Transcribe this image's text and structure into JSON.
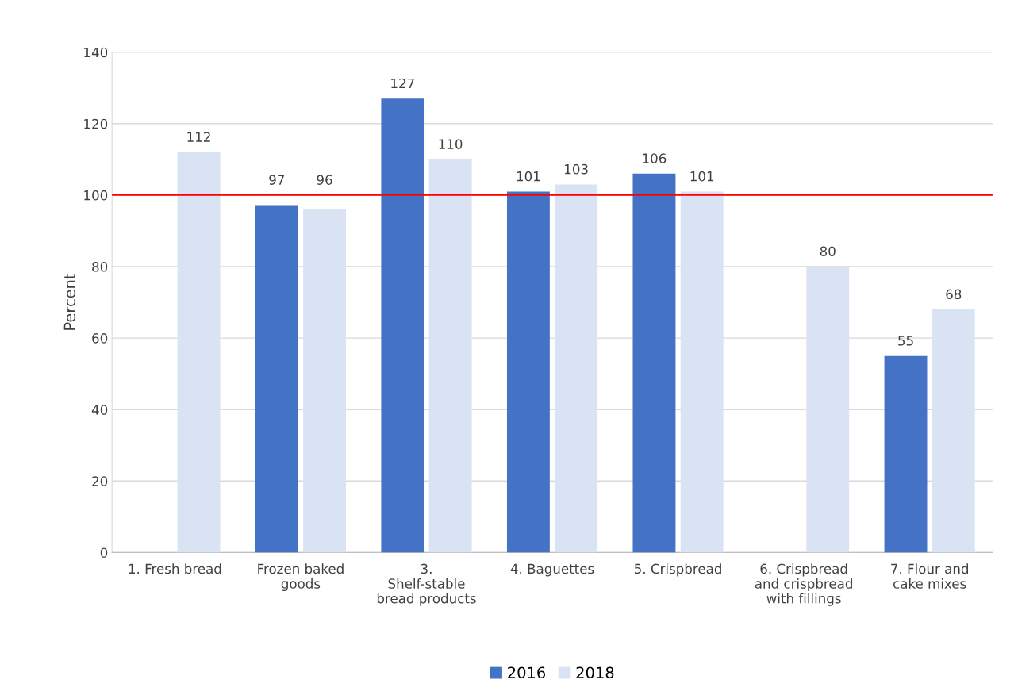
{
  "chart_data": {
    "type": "bar",
    "ylabel": "Percent",
    "categories": [
      "1. Fresh bread",
      "Frozen baked goods",
      "3. Shelf-stable bread products",
      "4. Baguettes",
      "5. Crispbread",
      "6. Crispbread and crispbread with fillings",
      "7. Flour and cake mixes"
    ],
    "series": [
      {
        "name": "2016",
        "color": "#4472c4",
        "values": [
          null,
          97,
          127,
          101,
          106,
          null,
          55
        ]
      },
      {
        "name": "2018",
        "color": "#dae3f3",
        "values": [
          112,
          96,
          110,
          103,
          101,
          80,
          68
        ]
      }
    ],
    "ylim": [
      0,
      140
    ],
    "yticks": [
      0,
      20,
      40,
      60,
      80,
      100,
      120,
      140
    ],
    "ref_lines": [
      {
        "axis": "y",
        "value": 100,
        "color": "#ff0000"
      }
    ],
    "data_labels": true,
    "grid": "y",
    "legend": "bottom"
  }
}
